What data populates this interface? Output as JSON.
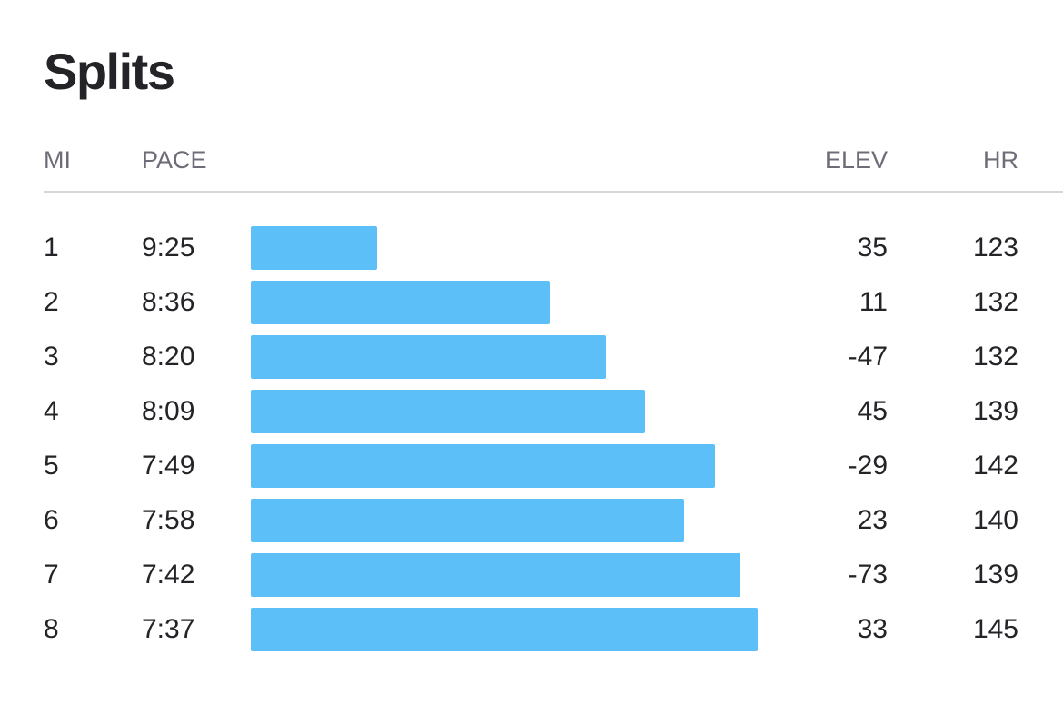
{
  "title": "Splits",
  "columns": {
    "mi": "MI",
    "pace": "PACE",
    "elev": "ELEV",
    "hr": "HR"
  },
  "colors": {
    "bar": "#5dbff7",
    "text": "#242428",
    "header_text": "#6d6d78",
    "divider": "#d6d6db"
  },
  "splits": [
    {
      "mi": "1",
      "pace": "9:25",
      "pace_seconds": 565,
      "elev": "35",
      "hr": "123"
    },
    {
      "mi": "2",
      "pace": "8:36",
      "pace_seconds": 516,
      "elev": "11",
      "hr": "132"
    },
    {
      "mi": "3",
      "pace": "8:20",
      "pace_seconds": 500,
      "elev": "-47",
      "hr": "132"
    },
    {
      "mi": "4",
      "pace": "8:09",
      "pace_seconds": 489,
      "elev": "45",
      "hr": "139"
    },
    {
      "mi": "5",
      "pace": "7:49",
      "pace_seconds": 469,
      "elev": "-29",
      "hr": "142"
    },
    {
      "mi": "6",
      "pace": "7:58",
      "pace_seconds": 478,
      "elev": "23",
      "hr": "140"
    },
    {
      "mi": "7",
      "pace": "7:42",
      "pace_seconds": 462,
      "elev": "-73",
      "hr": "139"
    },
    {
      "mi": "8",
      "pace": "7:37",
      "pace_seconds": 457,
      "elev": "33",
      "hr": "145"
    }
  ]
}
